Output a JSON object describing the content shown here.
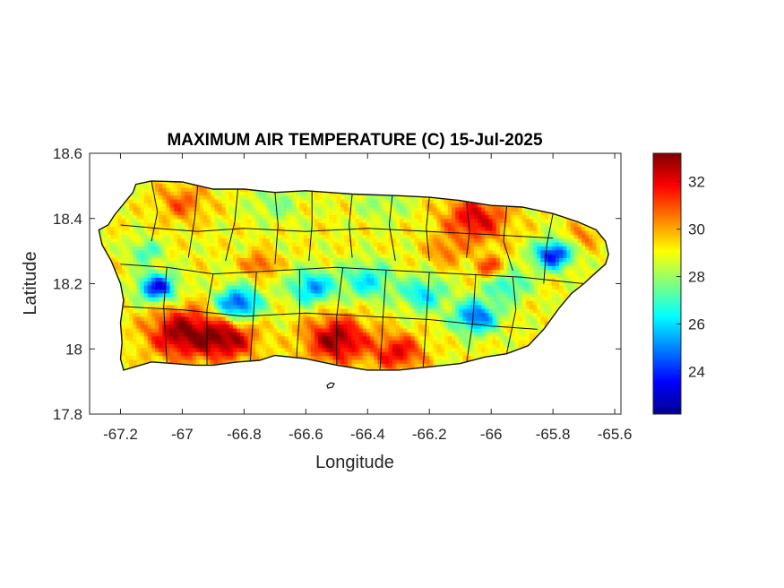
{
  "chart_data": {
    "type": "heatmap",
    "title": "MAXIMUM AIR TEMPERATURE (C) 15-Jul-2025",
    "xlabel": "Longitude",
    "ylabel": "Latitude",
    "xlim": [
      -67.3,
      -65.58
    ],
    "ylim": [
      17.8,
      18.6
    ],
    "xticks": [
      -67.2,
      -67,
      -66.8,
      -66.6,
      -66.4,
      -66.2,
      -66,
      -65.8,
      -65.6
    ],
    "xtick_labels": [
      "-67.2",
      "-67",
      "-66.8",
      "-66.6",
      "-66.4",
      "-66.2",
      "-66",
      "-65.8",
      "-65.6"
    ],
    "yticks": [
      17.8,
      18,
      18.2,
      18.4,
      18.6
    ],
    "ytick_labels": [
      "17.8",
      "18",
      "18.2",
      "18.4",
      "18.6"
    ],
    "colormap": "jet",
    "colorbar": {
      "range": [
        22.2,
        33.2
      ],
      "ticks": [
        24,
        26,
        28,
        30,
        32
      ],
      "tick_labels": [
        "24",
        "26",
        "28",
        "30",
        "32"
      ]
    },
    "grid": false,
    "island_outline": [
      [
        -67.27,
        18.365
      ],
      [
        -67.24,
        18.38
      ],
      [
        -67.22,
        18.41
      ],
      [
        -67.19,
        18.445
      ],
      [
        -67.16,
        18.48
      ],
      [
        -67.15,
        18.505
      ],
      [
        -67.1,
        18.515
      ],
      [
        -67.0,
        18.512
      ],
      [
        -66.9,
        18.49
      ],
      [
        -66.8,
        18.49
      ],
      [
        -66.7,
        18.48
      ],
      [
        -66.6,
        18.485
      ],
      [
        -66.45,
        18.475
      ],
      [
        -66.3,
        18.47
      ],
      [
        -66.2,
        18.465
      ],
      [
        -66.1,
        18.455
      ],
      [
        -66.0,
        18.44
      ],
      [
        -65.9,
        18.435
      ],
      [
        -65.8,
        18.415
      ],
      [
        -65.72,
        18.39
      ],
      [
        -65.66,
        18.365
      ],
      [
        -65.63,
        18.33
      ],
      [
        -65.62,
        18.29
      ],
      [
        -65.63,
        18.26
      ],
      [
        -65.66,
        18.235
      ],
      [
        -65.7,
        18.2
      ],
      [
        -65.74,
        18.17
      ],
      [
        -65.78,
        18.125
      ],
      [
        -65.83,
        18.06
      ],
      [
        -65.88,
        18.01
      ],
      [
        -65.95,
        17.985
      ],
      [
        -66.02,
        17.975
      ],
      [
        -66.1,
        17.955
      ],
      [
        -66.2,
        17.945
      ],
      [
        -66.3,
        17.935
      ],
      [
        -66.4,
        17.935
      ],
      [
        -66.5,
        17.95
      ],
      [
        -66.6,
        17.97
      ],
      [
        -66.7,
        17.98
      ],
      [
        -66.75,
        17.965
      ],
      [
        -66.82,
        17.96
      ],
      [
        -66.9,
        17.95
      ],
      [
        -66.96,
        17.95
      ],
      [
        -67.03,
        17.955
      ],
      [
        -67.1,
        17.96
      ],
      [
        -67.19,
        17.935
      ],
      [
        -67.2,
        17.97
      ],
      [
        -67.195,
        18.02
      ],
      [
        -67.2,
        18.08
      ],
      [
        -67.19,
        18.15
      ],
      [
        -67.2,
        18.2
      ],
      [
        -67.23,
        18.27
      ],
      [
        -67.26,
        18.32
      ]
    ],
    "temperature_field": {
      "base": 29.0,
      "anomalies": [
        {
          "lon": -67.08,
          "lat": 18.19,
          "r": 0.06,
          "delta": -5.5
        },
        {
          "lon": -67.12,
          "lat": 18.3,
          "r": 0.05,
          "delta": -2.2
        },
        {
          "lon": -66.82,
          "lat": 18.14,
          "r": 0.07,
          "delta": -5.0
        },
        {
          "lon": -66.58,
          "lat": 18.19,
          "r": 0.07,
          "delta": -3.8
        },
        {
          "lon": -66.4,
          "lat": 18.21,
          "r": 0.08,
          "delta": -2.8
        },
        {
          "lon": -66.22,
          "lat": 18.17,
          "r": 0.07,
          "delta": -3.0
        },
        {
          "lon": -66.05,
          "lat": 18.1,
          "r": 0.07,
          "delta": -4.5
        },
        {
          "lon": -65.8,
          "lat": 18.29,
          "r": 0.06,
          "delta": -5.5
        },
        {
          "lon": -65.95,
          "lat": 18.2,
          "r": 0.07,
          "delta": -2.5
        },
        {
          "lon": -67.0,
          "lat": 18.05,
          "r": 0.11,
          "delta": 4.0
        },
        {
          "lon": -66.85,
          "lat": 18.03,
          "r": 0.09,
          "delta": 3.5
        },
        {
          "lon": -66.5,
          "lat": 18.03,
          "r": 0.1,
          "delta": 4.0
        },
        {
          "lon": -66.3,
          "lat": 17.99,
          "r": 0.08,
          "delta": 3.0
        },
        {
          "lon": -66.05,
          "lat": 18.4,
          "r": 0.1,
          "delta": 3.2
        },
        {
          "lon": -66.0,
          "lat": 18.25,
          "r": 0.05,
          "delta": 2.5
        },
        {
          "lon": -66.75,
          "lat": 18.26,
          "r": 0.05,
          "delta": 2.2
        },
        {
          "lon": -67.0,
          "lat": 18.45,
          "r": 0.08,
          "delta": 1.8
        },
        {
          "lon": -66.7,
          "lat": 18.45,
          "r": 0.08,
          "delta": -1.2
        },
        {
          "lon": -66.35,
          "lat": 18.45,
          "r": 0.08,
          "delta": -1.0
        },
        {
          "lon": -65.7,
          "lat": 18.35,
          "r": 0.05,
          "delta": 1.5
        },
        {
          "lon": -66.15,
          "lat": 18.3,
          "r": 0.06,
          "delta": 1.5
        }
      ]
    },
    "municipal_boundaries": [
      [
        [
          -67.1,
          18.515
        ],
        [
          -67.08,
          18.42
        ],
        [
          -67.1,
          18.33
        ]
      ],
      [
        [
          -66.95,
          18.5
        ],
        [
          -66.96,
          18.4
        ],
        [
          -66.98,
          18.28
        ]
      ],
      [
        [
          -66.82,
          18.49
        ],
        [
          -66.83,
          18.39
        ],
        [
          -66.86,
          18.27
        ]
      ],
      [
        [
          -66.7,
          18.48
        ],
        [
          -66.69,
          18.38
        ],
        [
          -66.7,
          18.26
        ]
      ],
      [
        [
          -66.58,
          18.485
        ],
        [
          -66.58,
          18.38
        ],
        [
          -66.59,
          18.27
        ]
      ],
      [
        [
          -66.45,
          18.475
        ],
        [
          -66.46,
          18.38
        ],
        [
          -66.45,
          18.28
        ]
      ],
      [
        [
          -66.32,
          18.47
        ],
        [
          -66.33,
          18.38
        ],
        [
          -66.31,
          18.27
        ]
      ],
      [
        [
          -66.2,
          18.465
        ],
        [
          -66.21,
          18.37
        ],
        [
          -66.2,
          18.27
        ]
      ],
      [
        [
          -66.08,
          18.455
        ],
        [
          -66.07,
          18.36
        ],
        [
          -66.08,
          18.28
        ]
      ],
      [
        [
          -65.95,
          18.435
        ],
        [
          -65.96,
          18.33
        ],
        [
          -65.93,
          18.24
        ]
      ],
      [
        [
          -65.8,
          18.415
        ],
        [
          -65.82,
          18.32
        ],
        [
          -65.83,
          18.2
        ]
      ],
      [
        [
          -67.2,
          18.26
        ],
        [
          -67.05,
          18.25
        ],
        [
          -66.9,
          18.23
        ],
        [
          -66.7,
          18.24
        ],
        [
          -66.5,
          18.25
        ],
        [
          -66.3,
          18.24
        ],
        [
          -66.1,
          18.23
        ],
        [
          -65.9,
          18.22
        ],
        [
          -65.7,
          18.2
        ]
      ],
      [
        [
          -67.19,
          18.13
        ],
        [
          -67.0,
          18.12
        ],
        [
          -66.8,
          18.1
        ],
        [
          -66.6,
          18.11
        ],
        [
          -66.4,
          18.1
        ],
        [
          -66.2,
          18.09
        ],
        [
          -66.0,
          18.07
        ],
        [
          -65.85,
          18.06
        ]
      ],
      [
        [
          -67.05,
          18.25
        ],
        [
          -67.06,
          18.13
        ],
        [
          -67.05,
          17.96
        ]
      ],
      [
        [
          -66.9,
          18.23
        ],
        [
          -66.92,
          18.12
        ],
        [
          -66.92,
          17.95
        ]
      ],
      [
        [
          -66.76,
          18.235
        ],
        [
          -66.77,
          18.1
        ],
        [
          -66.78,
          17.96
        ]
      ],
      [
        [
          -66.62,
          18.245
        ],
        [
          -66.62,
          18.11
        ],
        [
          -66.63,
          17.975
        ]
      ],
      [
        [
          -66.48,
          18.25
        ],
        [
          -66.5,
          18.1
        ],
        [
          -66.5,
          17.95
        ]
      ],
      [
        [
          -66.34,
          18.24
        ],
        [
          -66.35,
          18.1
        ],
        [
          -66.36,
          17.935
        ]
      ],
      [
        [
          -66.2,
          18.235
        ],
        [
          -66.21,
          18.09
        ],
        [
          -66.22,
          17.945
        ]
      ],
      [
        [
          -66.05,
          18.23
        ],
        [
          -66.06,
          18.08
        ],
        [
          -66.08,
          17.955
        ]
      ],
      [
        [
          -65.93,
          18.22
        ],
        [
          -65.92,
          18.12
        ],
        [
          -65.95,
          17.985
        ]
      ],
      [
        [
          -67.2,
          18.38
        ],
        [
          -67.08,
          18.37
        ],
        [
          -66.95,
          18.36
        ],
        [
          -66.8,
          18.37
        ],
        [
          -66.6,
          18.36
        ],
        [
          -66.4,
          18.37
        ],
        [
          -66.2,
          18.36
        ],
        [
          -66.0,
          18.35
        ],
        [
          -65.8,
          18.34
        ]
      ]
    ]
  }
}
